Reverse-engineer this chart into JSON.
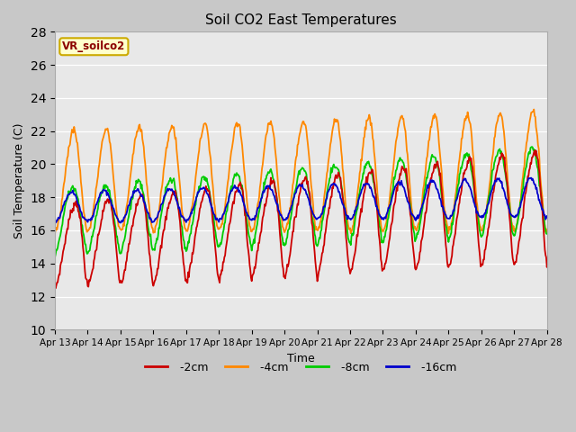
{
  "title": "Soil CO2 East Temperatures",
  "xlabel": "Time",
  "ylabel": "Soil Temperature (C)",
  "ylim": [
    10,
    28
  ],
  "xlim": [
    0,
    360
  ],
  "fig_facecolor": "#c8c8c8",
  "plot_bg_color": "#e8e8e8",
  "grid_color": "#ffffff",
  "series": {
    "-2cm": {
      "color": "#cc0000",
      "linewidth": 1.3
    },
    "-4cm": {
      "color": "#ff8800",
      "linewidth": 1.3
    },
    "-8cm": {
      "color": "#00cc00",
      "linewidth": 1.3
    },
    "-16cm": {
      "color": "#0000cc",
      "linewidth": 1.3
    }
  },
  "legend_label": "VR_soilco2",
  "x_tick_labels": [
    "Apr 13",
    "Apr 14",
    "Apr 15",
    "Apr 16",
    "Apr 17",
    "Apr 18",
    "Apr 19",
    "Apr 20",
    "Apr 21",
    "Apr 22",
    "Apr 23",
    "Apr 24",
    "Apr 25",
    "Apr 26",
    "Apr 27",
    "Apr 28"
  ],
  "x_tick_positions": [
    0,
    24,
    48,
    72,
    96,
    120,
    144,
    168,
    192,
    216,
    240,
    264,
    288,
    312,
    336,
    360
  ],
  "y_ticks": [
    10,
    12,
    14,
    16,
    18,
    20,
    22,
    24,
    26,
    28
  ],
  "figsize": [
    6.4,
    4.8
  ],
  "dpi": 100
}
